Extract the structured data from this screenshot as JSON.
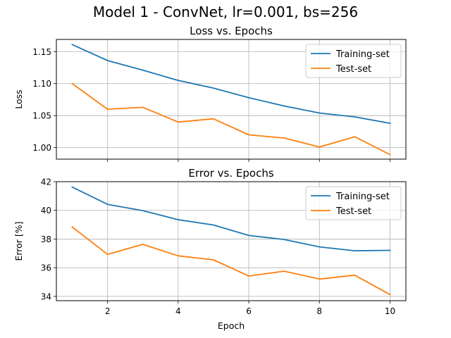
{
  "figure": {
    "suptitle": "Model 1 - ConvNet, lr=0.001, bs=256"
  },
  "chart_data": [
    {
      "type": "line",
      "title": "Loss vs. Epochs",
      "xlabel": "",
      "ylabel": "Loss",
      "xlim": [
        0.55,
        10.45
      ],
      "ylim": [
        0.982,
        1.169
      ],
      "xticks": [
        2,
        4,
        6,
        8,
        10
      ],
      "xtick_labels_visible": false,
      "yticks": [
        1.0,
        1.05,
        1.1,
        1.15
      ],
      "ytick_labels": [
        "1.00",
        "1.05",
        "1.10",
        "1.15"
      ],
      "grid": true,
      "legend": "top-right",
      "x": [
        1,
        2,
        3,
        4,
        5,
        6,
        7,
        8,
        9,
        10
      ],
      "series": [
        {
          "name": "Training-set",
          "color": "#1f77b4",
          "values": [
            1.161,
            1.136,
            1.121,
            1.105,
            1.093,
            1.078,
            1.065,
            1.054,
            1.048,
            1.038
          ]
        },
        {
          "name": "Test-set",
          "color": "#ff7f0e",
          "values": [
            1.1,
            1.06,
            1.063,
            1.04,
            1.045,
            1.02,
            1.015,
            1.001,
            1.017,
            0.989
          ]
        }
      ]
    },
    {
      "type": "line",
      "title": "Error vs. Epochs",
      "xlabel": "Epoch",
      "ylabel": "Error [%]",
      "xlim": [
        0.55,
        10.45
      ],
      "ylim": [
        33.7,
        42.0
      ],
      "xticks": [
        2,
        4,
        6,
        8,
        10
      ],
      "xtick_labels": [
        "2",
        "4",
        "6",
        "8",
        "10"
      ],
      "xtick_labels_visible": true,
      "yticks": [
        34,
        36,
        38,
        40,
        42
      ],
      "ytick_labels": [
        "34",
        "36",
        "38",
        "40",
        "42"
      ],
      "grid": true,
      "legend": "top-right",
      "x": [
        1,
        2,
        3,
        4,
        5,
        6,
        7,
        8,
        9,
        10
      ],
      "series": [
        {
          "name": "Training-set",
          "color": "#1f77b4",
          "values": [
            41.62,
            40.42,
            39.98,
            39.35,
            38.98,
            38.25,
            37.97,
            37.45,
            37.18,
            37.21
          ]
        },
        {
          "name": "Test-set",
          "color": "#ff7f0e",
          "values": [
            38.84,
            36.93,
            37.63,
            36.83,
            36.55,
            35.42,
            35.76,
            35.21,
            35.48,
            34.12
          ]
        }
      ]
    }
  ]
}
